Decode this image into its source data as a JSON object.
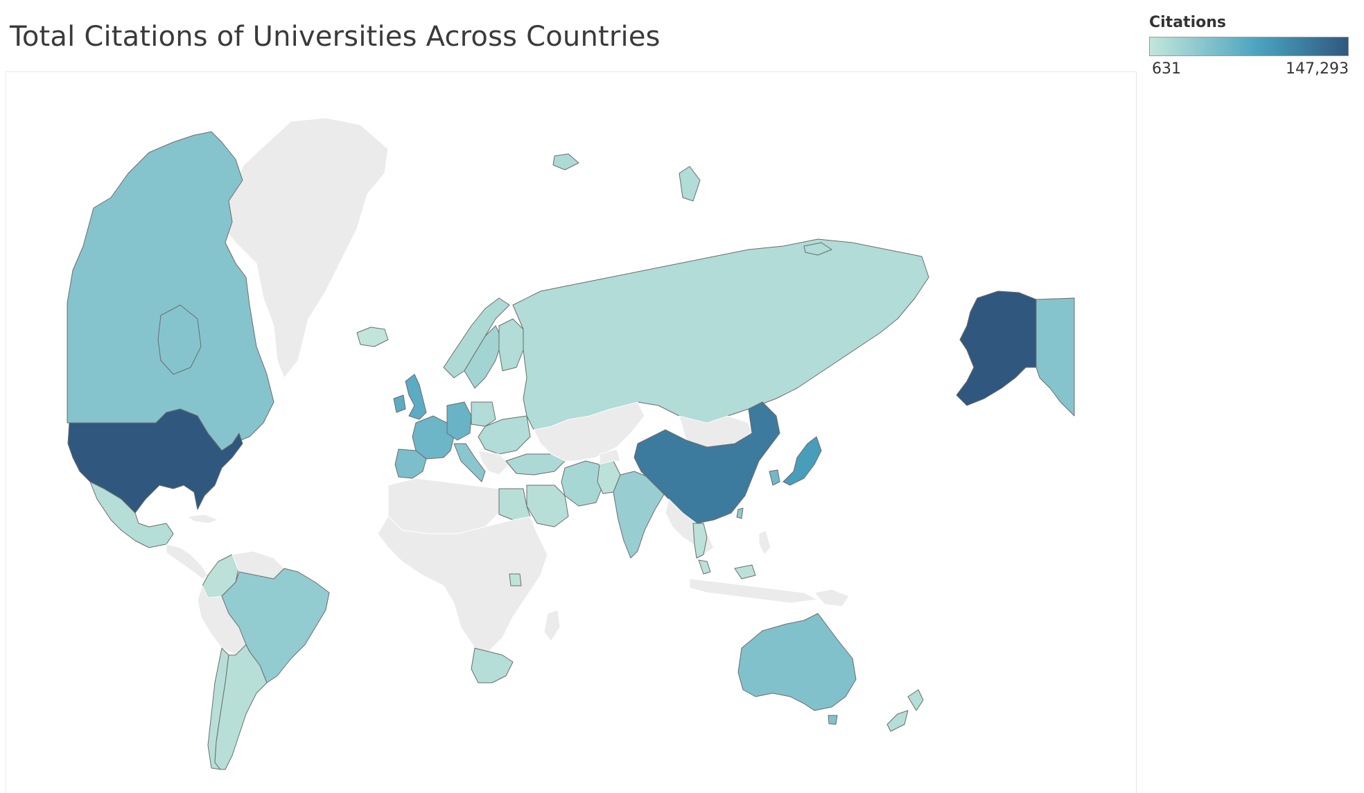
{
  "title": "Total Citations of Universities Across Countries",
  "legend": {
    "title": "Citations",
    "min_label": "631",
    "max_label": "147,293",
    "color_low": "#c3e6db",
    "color_mid": "#4aa3bf",
    "color_high": "#30587f"
  },
  "colors": {
    "no_data": "#ebebeb",
    "water": "#ffffff",
    "border": "#6b6b6b"
  },
  "map_data": {
    "type": "choropleth",
    "measure": "Citations",
    "range": [
      631,
      147293
    ],
    "countries": [
      {
        "name": "United States",
        "value": 147293
      },
      {
        "name": "China",
        "value": 95000
      },
      {
        "name": "Japan",
        "value": 55000
      },
      {
        "name": "Germany",
        "value": 30000
      },
      {
        "name": "United Kingdom",
        "value": 38000
      },
      {
        "name": "France",
        "value": 28000
      },
      {
        "name": "Spain",
        "value": 20000
      },
      {
        "name": "Italy",
        "value": 14000
      },
      {
        "name": "Australia",
        "value": 18000
      },
      {
        "name": "Canada",
        "value": 16000
      },
      {
        "name": "Brazil",
        "value": 11000
      },
      {
        "name": "India",
        "value": 9000
      },
      {
        "name": "Russia",
        "value": 3000
      },
      {
        "name": "Iran",
        "value": 5000
      },
      {
        "name": "Turkey",
        "value": 4000
      },
      {
        "name": "Mexico",
        "value": 2500
      },
      {
        "name": "Argentina",
        "value": 2000
      },
      {
        "name": "Chile",
        "value": 2000
      },
      {
        "name": "Colombia",
        "value": 1500
      },
      {
        "name": "South Africa",
        "value": 2500
      },
      {
        "name": "Egypt",
        "value": 2000
      },
      {
        "name": "Saudi Arabia",
        "value": 2000
      },
      {
        "name": "Thailand",
        "value": 1500
      },
      {
        "name": "Malaysia",
        "value": 1500
      },
      {
        "name": "New Zealand",
        "value": 2500
      },
      {
        "name": "Uganda",
        "value": 900
      },
      {
        "name": "Sweden",
        "value": 6000
      },
      {
        "name": "Norway",
        "value": 3500
      },
      {
        "name": "Finland",
        "value": 3000
      },
      {
        "name": "Poland",
        "value": 3000
      },
      {
        "name": "Iceland",
        "value": 800
      },
      {
        "name": "South Korea",
        "value": 25000
      },
      {
        "name": "Taiwan",
        "value": 12000
      },
      {
        "name": "Pakistan",
        "value": 1500
      }
    ]
  }
}
